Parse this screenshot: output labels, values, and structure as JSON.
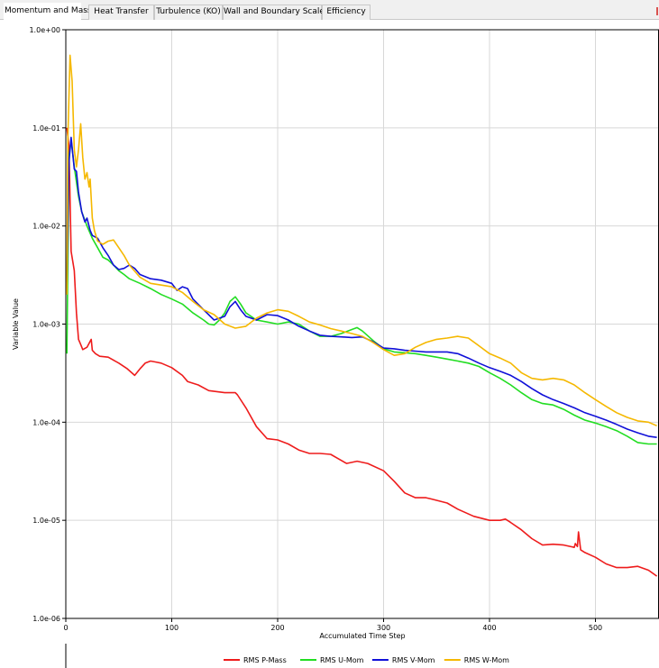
{
  "tabs": [
    {
      "label": "Momentum and Mass",
      "active": true
    },
    {
      "label": "Heat Transfer",
      "active": false
    },
    {
      "label": "Turbulence (KO)",
      "active": false
    },
    {
      "label": "Wall and Boundary Scale",
      "active": false
    },
    {
      "label": "Efficiency",
      "active": false
    }
  ],
  "colors": {
    "rms_p_mass": "#ee1c1c",
    "rms_u_mom": "#22dd22",
    "rms_v_mom": "#1010d8",
    "rms_w_mom": "#f5b800",
    "grid": "#d8d8d8",
    "tab_close": "#d9534f"
  },
  "chart_data": {
    "type": "line",
    "xlabel": "Accumulated Time Step",
    "ylabel": "Variable Value",
    "xlim": [
      0,
      560
    ],
    "ylim": [
      1e-06,
      1
    ],
    "y_scale": "log",
    "grid": true,
    "legend": "bottom",
    "x_ticks": [
      "0",
      "100",
      "200",
      "300",
      "400",
      "500"
    ],
    "x_tick_values": [
      0,
      100,
      200,
      300,
      400,
      500
    ],
    "y_ticks": [
      "1.0e+00",
      "1.0e-01",
      "1.0e-02",
      "1.0e-03",
      "1.0e-04",
      "1.0e-05",
      "1.0e-06"
    ],
    "y_tick_values": [
      1,
      0.1,
      0.01,
      0.001,
      0.0001,
      1e-05,
      1e-06
    ],
    "series": [
      {
        "name": "RMS P-Mass",
        "color_key": "rms_p_mass",
        "x": [
          1,
          3,
          5,
          8,
          10,
          12,
          14,
          16,
          20,
          24,
          25,
          28,
          32,
          40,
          50,
          58,
          65,
          70,
          75,
          80,
          85,
          90,
          100,
          110,
          115,
          125,
          135,
          150,
          160,
          162,
          170,
          180,
          190,
          200,
          210,
          220,
          230,
          240,
          250,
          265,
          275,
          285,
          300,
          310,
          320,
          330,
          340,
          345,
          350,
          360,
          370,
          385,
          400,
          410,
          415,
          418,
          420,
          430,
          440,
          450,
          460,
          470,
          480,
          481,
          483,
          484,
          486,
          490,
          500,
          510,
          520,
          530,
          540,
          550,
          558
        ],
        "y": [
          0.1,
          0.065,
          0.0055,
          0.0035,
          0.0013,
          0.0007,
          0.00062,
          0.00055,
          0.00058,
          0.0007,
          0.00054,
          0.0005,
          0.00047,
          0.00046,
          0.0004,
          0.00035,
          0.0003,
          0.00035,
          0.0004,
          0.00042,
          0.00041,
          0.0004,
          0.00036,
          0.0003,
          0.00026,
          0.00024,
          0.00021,
          0.0002,
          0.0002,
          0.00019,
          0.00014,
          9e-05,
          6.8e-05,
          6.6e-05,
          6e-05,
          5.2e-05,
          4.8e-05,
          4.8e-05,
          4.7e-05,
          3.8e-05,
          4e-05,
          3.8e-05,
          3.2e-05,
          2.5e-05,
          1.9e-05,
          1.7e-05,
          1.7e-05,
          1.65e-05,
          1.6e-05,
          1.5e-05,
          1.3e-05,
          1.1e-05,
          1e-05,
          1e-05,
          1.03e-05,
          9.8e-06,
          9.5e-06,
          8e-06,
          6.5e-06,
          5.6e-06,
          5.7e-06,
          5.6e-06,
          5.3e-06,
          5.8e-06,
          5.4e-06,
          7.6e-06,
          5e-06,
          4.7e-06,
          4.2e-06,
          3.6e-06,
          3.3e-06,
          3.3e-06,
          3.4e-06,
          3.1e-06,
          2.7e-06
        ]
      },
      {
        "name": "RMS U-Mom",
        "color_key": "rms_u_mom",
        "x": [
          1,
          3,
          5,
          8,
          12,
          15,
          20,
          25,
          30,
          35,
          40,
          45,
          50,
          55,
          60,
          70,
          80,
          90,
          100,
          110,
          120,
          130,
          135,
          140,
          145,
          150,
          155,
          160,
          165,
          170,
          180,
          190,
          200,
          210,
          220,
          230,
          240,
          250,
          260,
          270,
          275,
          280,
          290,
          300,
          310,
          320,
          330,
          340,
          350,
          360,
          370,
          380,
          390,
          400,
          410,
          420,
          430,
          440,
          450,
          460,
          470,
          480,
          490,
          500,
          510,
          520,
          530,
          540,
          550,
          558
        ],
        "y": [
          0.0005,
          0.05,
          0.075,
          0.04,
          0.02,
          0.014,
          0.01,
          0.0075,
          0.006,
          0.0048,
          0.0045,
          0.004,
          0.0035,
          0.0032,
          0.0029,
          0.0026,
          0.0023,
          0.002,
          0.0018,
          0.0016,
          0.0013,
          0.0011,
          0.001,
          0.00098,
          0.0011,
          0.0013,
          0.0017,
          0.0019,
          0.0016,
          0.0013,
          0.0011,
          0.00105,
          0.001,
          0.00105,
          0.001,
          0.00085,
          0.00075,
          0.00075,
          0.0008,
          0.00088,
          0.00092,
          0.00085,
          0.00068,
          0.00056,
          0.00052,
          0.00051,
          0.0005,
          0.00048,
          0.00046,
          0.00044,
          0.00042,
          0.0004,
          0.00037,
          0.00032,
          0.00028,
          0.00024,
          0.0002,
          0.00017,
          0.000155,
          0.00015,
          0.000135,
          0.000118,
          0.000105,
          9.8e-05,
          9e-05,
          8.2e-05,
          7.2e-05,
          6.2e-05,
          6e-05,
          6e-05
        ]
      },
      {
        "name": "RMS V-Mom",
        "color_key": "rms_v_mom",
        "x": [
          1,
          3,
          5,
          8,
          10,
          12,
          15,
          18,
          20,
          23,
          25,
          30,
          35,
          40,
          45,
          50,
          55,
          60,
          65,
          70,
          80,
          90,
          100,
          105,
          110,
          115,
          120,
          130,
          140,
          150,
          155,
          160,
          165,
          170,
          180,
          190,
          200,
          210,
          220,
          230,
          240,
          250,
          260,
          270,
          280,
          290,
          300,
          310,
          320,
          330,
          340,
          350,
          360,
          370,
          380,
          390,
          400,
          410,
          420,
          430,
          440,
          450,
          460,
          470,
          480,
          490,
          500,
          510,
          520,
          530,
          540,
          550,
          558
        ],
        "y": [
          0.0025,
          0.045,
          0.08,
          0.038,
          0.036,
          0.022,
          0.014,
          0.011,
          0.012,
          0.009,
          0.008,
          0.0075,
          0.006,
          0.005,
          0.004,
          0.0036,
          0.0037,
          0.004,
          0.0037,
          0.0032,
          0.0029,
          0.0028,
          0.0026,
          0.0022,
          0.0024,
          0.0023,
          0.0018,
          0.0014,
          0.0011,
          0.0012,
          0.0015,
          0.0017,
          0.0014,
          0.0012,
          0.0011,
          0.00125,
          0.00122,
          0.0011,
          0.00095,
          0.00085,
          0.00077,
          0.00075,
          0.00074,
          0.00073,
          0.00074,
          0.00066,
          0.00057,
          0.00056,
          0.00054,
          0.00053,
          0.00052,
          0.00052,
          0.00052,
          0.0005,
          0.00045,
          0.0004,
          0.00036,
          0.00033,
          0.0003,
          0.00026,
          0.00022,
          0.00019,
          0.00017,
          0.000155,
          0.00014,
          0.000125,
          0.000115,
          0.000105,
          9.5e-05,
          8.5e-05,
          7.8e-05,
          7.2e-05,
          7e-05
        ]
      },
      {
        "name": "RMS W-Mom",
        "color_key": "rms_w_mom",
        "x": [
          1,
          2,
          4,
          6,
          8,
          10,
          12,
          14,
          16,
          18,
          20,
          22,
          23,
          25,
          27,
          30,
          35,
          40,
          45,
          50,
          55,
          60,
          70,
          80,
          90,
          100,
          110,
          120,
          130,
          140,
          150,
          160,
          170,
          180,
          190,
          200,
          210,
          220,
          230,
          240,
          250,
          260,
          270,
          280,
          290,
          300,
          310,
          320,
          330,
          340,
          350,
          360,
          370,
          380,
          390,
          400,
          410,
          420,
          430,
          440,
          450,
          460,
          470,
          480,
          490,
          500,
          510,
          520,
          530,
          540,
          550,
          558
        ],
        "y": [
          0.002,
          0.08,
          0.55,
          0.3,
          0.06,
          0.04,
          0.06,
          0.11,
          0.05,
          0.03,
          0.035,
          0.025,
          0.03,
          0.012,
          0.009,
          0.007,
          0.0065,
          0.007,
          0.0072,
          0.006,
          0.005,
          0.004,
          0.003,
          0.0026,
          0.0025,
          0.0024,
          0.0021,
          0.0017,
          0.0014,
          0.00125,
          0.001,
          0.00091,
          0.00095,
          0.00115,
          0.0013,
          0.0014,
          0.00135,
          0.0012,
          0.00105,
          0.00098,
          0.0009,
          0.00085,
          0.0008,
          0.00075,
          0.00065,
          0.00055,
          0.00048,
          0.0005,
          0.00058,
          0.00065,
          0.0007,
          0.00072,
          0.00075,
          0.00072,
          0.0006,
          0.0005,
          0.00045,
          0.0004,
          0.00032,
          0.00028,
          0.00027,
          0.00028,
          0.00027,
          0.00024,
          0.0002,
          0.00017,
          0.000145,
          0.000125,
          0.000112,
          0.000103,
          0.0001,
          9.2e-05
        ]
      }
    ]
  }
}
